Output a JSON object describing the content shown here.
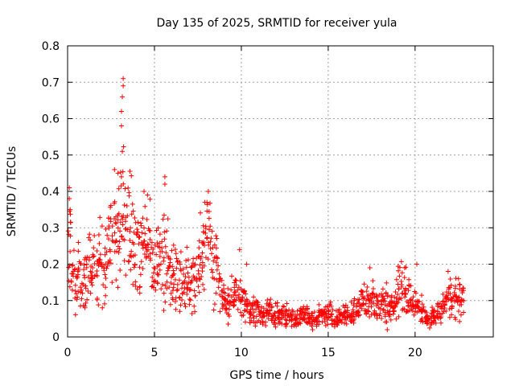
{
  "chart_data": {
    "type": "scatter",
    "title": "Day 135 of 2025, SRMTID for receiver yula",
    "xlabel": "GPS time / hours",
    "ylabel": "SRMTID / TECUs",
    "xlim": [
      0,
      24.5
    ],
    "ylim": [
      0,
      0.8
    ],
    "xticks": [
      0,
      5,
      10,
      15,
      20
    ],
    "xtick_labels": [
      "0",
      "5",
      "10",
      "15",
      "20"
    ],
    "yticks": [
      0,
      0.1,
      0.2,
      0.3,
      0.4,
      0.5,
      0.6,
      0.7,
      0.8
    ],
    "ytick_labels": [
      "0",
      "0.1",
      "0.2",
      "0.3",
      "0.4",
      "0.5",
      "0.6",
      "0.7",
      "0.8"
    ],
    "grid": true,
    "marker": "+",
    "marker_color": "#ff0000",
    "series": [
      {
        "name": "SRMTID",
        "sample_step_hours": 0.2,
        "x_start": 0,
        "values": [
          0.25,
          0.16,
          0.15,
          0.17,
          0.16,
          0.17,
          0.2,
          0.19,
          0.18,
          0.23,
          0.19,
          0.22,
          0.28,
          0.29,
          0.3,
          0.33,
          0.36,
          0.31,
          0.27,
          0.24,
          0.22,
          0.22,
          0.24,
          0.26,
          0.21,
          0.19,
          0.23,
          0.24,
          0.2,
          0.17,
          0.16,
          0.16,
          0.15,
          0.14,
          0.17,
          0.16,
          0.17,
          0.18,
          0.22,
          0.25,
          0.27,
          0.23,
          0.2,
          0.16,
          0.13,
          0.1,
          0.09,
          0.1,
          0.12,
          0.11,
          0.09,
          0.08,
          0.07,
          0.07,
          0.07,
          0.06,
          0.06,
          0.07,
          0.07,
          0.06,
          0.06,
          0.06,
          0.06,
          0.06,
          0.06,
          0.05,
          0.05,
          0.06,
          0.06,
          0.05,
          0.05,
          0.05,
          0.06,
          0.06,
          0.06,
          0.06,
          0.05,
          0.05,
          0.05,
          0.06,
          0.06,
          0.07,
          0.08,
          0.08,
          0.09,
          0.09,
          0.1,
          0.1,
          0.09,
          0.09,
          0.1,
          0.09,
          0.08,
          0.09,
          0.11,
          0.13,
          0.14,
          0.12,
          0.1,
          0.09,
          0.09,
          0.08,
          0.06,
          0.05,
          0.05,
          0.06,
          0.07,
          0.08,
          0.09,
          0.1,
          0.11,
          0.12,
          0.1,
          0.1
        ]
      }
    ],
    "spike_points": [
      {
        "x": 0.1,
        "y": 0.41
      },
      {
        "x": 0.1,
        "y": 0.38
      },
      {
        "x": 0.15,
        "y": 0.35
      },
      {
        "x": 2.7,
        "y": 0.46
      },
      {
        "x": 2.9,
        "y": 0.45
      },
      {
        "x": 3.1,
        "y": 0.44
      },
      {
        "x": 3.15,
        "y": 0.51
      },
      {
        "x": 3.1,
        "y": 0.58
      },
      {
        "x": 3.1,
        "y": 0.62
      },
      {
        "x": 3.15,
        "y": 0.66
      },
      {
        "x": 3.2,
        "y": 0.69
      },
      {
        "x": 3.2,
        "y": 0.71
      },
      {
        "x": 4.4,
        "y": 0.4
      },
      {
        "x": 4.6,
        "y": 0.39
      },
      {
        "x": 5.6,
        "y": 0.44
      },
      {
        "x": 5.6,
        "y": 0.42
      },
      {
        "x": 8.1,
        "y": 0.4
      },
      {
        "x": 7.9,
        "y": 0.37
      },
      {
        "x": 9.9,
        "y": 0.24
      },
      {
        "x": 10.3,
        "y": 0.2
      },
      {
        "x": 17.4,
        "y": 0.19
      },
      {
        "x": 19.4,
        "y": 0.19
      },
      {
        "x": 20.1,
        "y": 0.2
      },
      {
        "x": 21.9,
        "y": 0.18
      },
      {
        "x": 22.5,
        "y": 0.16
      },
      {
        "x": 1.0,
        "y": 0.08
      },
      {
        "x": 2.0,
        "y": 0.08
      },
      {
        "x": 18.4,
        "y": 0.02
      },
      {
        "x": 14.1,
        "y": 0.02
      }
    ]
  }
}
